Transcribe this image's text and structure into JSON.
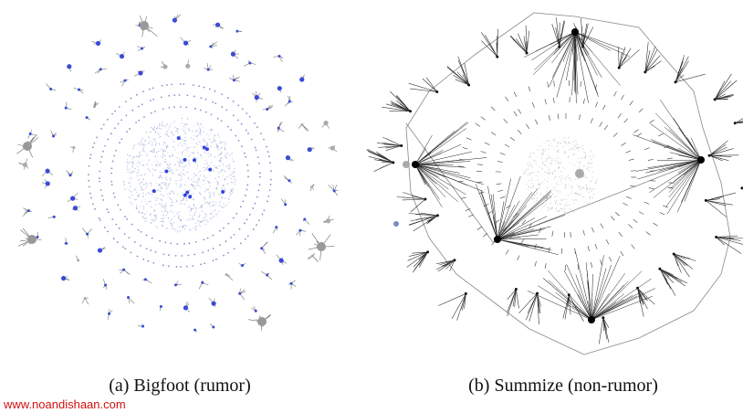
{
  "panels": [
    {
      "caption": "(a) Bigfoot (rumor)"
    },
    {
      "caption": "(b) Summize (non-rumor)"
    }
  ],
  "watermark": "www.noandishaan.com"
}
